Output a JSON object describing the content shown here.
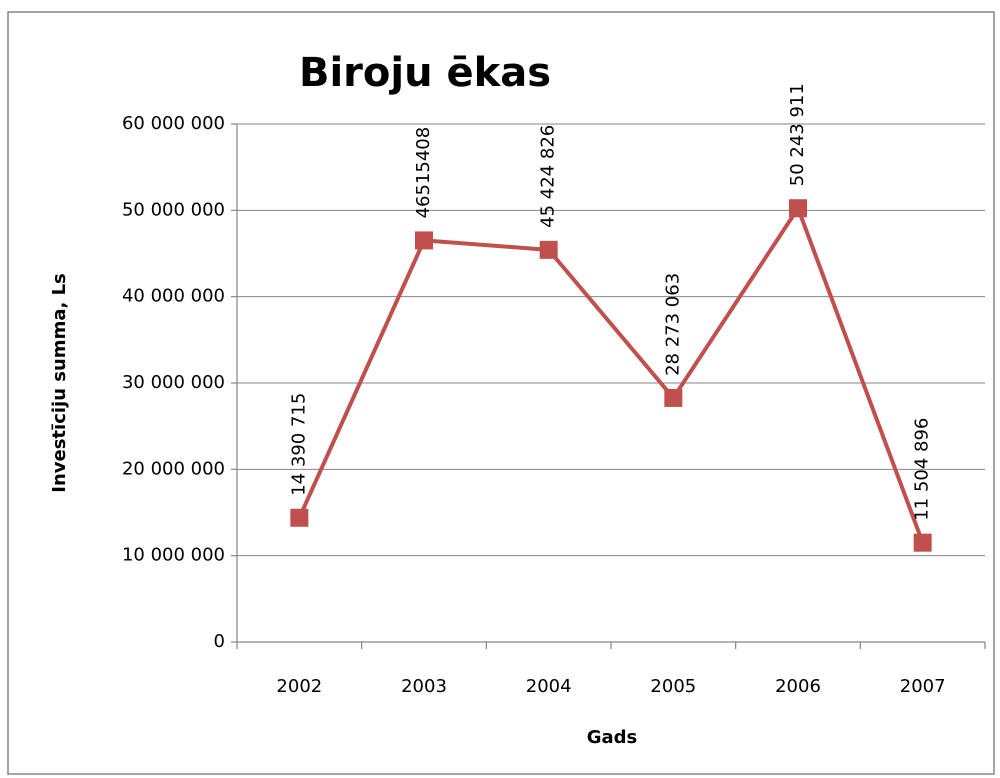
{
  "chart_data": {
    "type": "line",
    "title": "Biroju ēkas",
    "x_label": "Gads",
    "y_label": "Investīciju summa, Ls",
    "categories": [
      "2002",
      "2003",
      "2004",
      "2005",
      "2006",
      "2007"
    ],
    "series": [
      {
        "name": "Biroju ēkas",
        "color": "#c0504d",
        "values": [
          14390715,
          46515408,
          45424826,
          28273063,
          50243911,
          11504896
        ],
        "value_labels": [
          "14 390 715",
          "46515408",
          "45 424 826",
          "28 273 063",
          "50 243 911",
          "11 504 896"
        ]
      }
    ],
    "ylim": [
      0,
      60000000
    ],
    "yticks": [
      0,
      {
        "value": 10000000,
        "label": "10 000 000"
      },
      {
        "value": 20000000,
        "label": "20 000 000"
      },
      {
        "value": 30000000,
        "label": "30 000 000"
      },
      {
        "value": 40000000,
        "label": "40 000 000"
      },
      {
        "value": 50000000,
        "label": "50 000 000"
      },
      {
        "value": 60000000,
        "label": "60 000 000"
      }
    ],
    "grid": true
  }
}
